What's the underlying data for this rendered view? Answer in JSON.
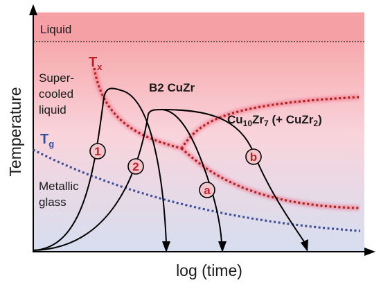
{
  "regions": {
    "liquid": "Liquid",
    "supercooled": [
      "Super-",
      "cooled",
      "liquid"
    ],
    "glass": [
      "Metallic",
      "glass"
    ]
  },
  "curves": {
    "tx": {
      "main": "T",
      "sub": "x"
    },
    "tg": {
      "main": "T",
      "sub": "g"
    }
  },
  "phases": {
    "b2": "B2 CuZr",
    "cu10zr7": {
      "p1": "Cu",
      "s1": "10",
      "p2": "Zr",
      "s2": "7",
      "p3": " (+ CuZr",
      "s3": "2",
      "p4": ")"
    }
  },
  "axes": {
    "ylabel": "Temperature",
    "xlabel": "log (time)"
  },
  "markers": [
    {
      "id": "1",
      "label": "1"
    },
    {
      "id": "2",
      "label": "2"
    },
    {
      "id": "a",
      "label": "a"
    },
    {
      "id": "b",
      "label": "b"
    }
  ],
  "colors": {
    "tx_curve": "#a8231c",
    "tg_curve": "#3e4f9a",
    "marker_fill": "#f2c6cc",
    "marker_text": "#c0202a",
    "liquid_band": "#f4a0a4"
  }
}
